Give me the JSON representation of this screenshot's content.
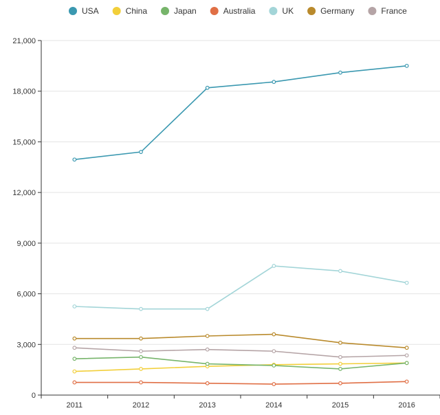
{
  "chart_data": {
    "type": "line",
    "title": "",
    "xlabel": "",
    "ylabel": "",
    "x": [
      "2011",
      "2012",
      "2013",
      "2014",
      "2015",
      "2016"
    ],
    "y_ticks": [
      "0",
      "3,000",
      "6,000",
      "9,000",
      "12,000",
      "15,000",
      "18,000",
      "21,000"
    ],
    "ylim": [
      0,
      21000
    ],
    "grid": true,
    "legend_position": "top",
    "series": [
      {
        "name": "USA",
        "color": "#3a98b0",
        "values": [
          13950,
          14400,
          18200,
          18550,
          19100,
          19500
        ]
      },
      {
        "name": "China",
        "color": "#f2cf3a",
        "values": [
          1400,
          1550,
          1700,
          1800,
          1850,
          1900
        ]
      },
      {
        "name": "Japan",
        "color": "#76b46a",
        "values": [
          2150,
          2250,
          1850,
          1750,
          1550,
          1900
        ]
      },
      {
        "name": "Australia",
        "color": "#e06f45",
        "values": [
          750,
          750,
          700,
          650,
          700,
          800
        ]
      },
      {
        "name": "UK",
        "color": "#a3d5d8",
        "values": [
          5250,
          5100,
          5100,
          7650,
          7350,
          6650
        ]
      },
      {
        "name": "Germany",
        "color": "#b98a2c",
        "values": [
          3350,
          3350,
          3500,
          3600,
          3100,
          2800
        ]
      },
      {
        "name": "France",
        "color": "#b5a4a6",
        "values": [
          2800,
          2600,
          2700,
          2600,
          2250,
          2350
        ]
      }
    ]
  }
}
